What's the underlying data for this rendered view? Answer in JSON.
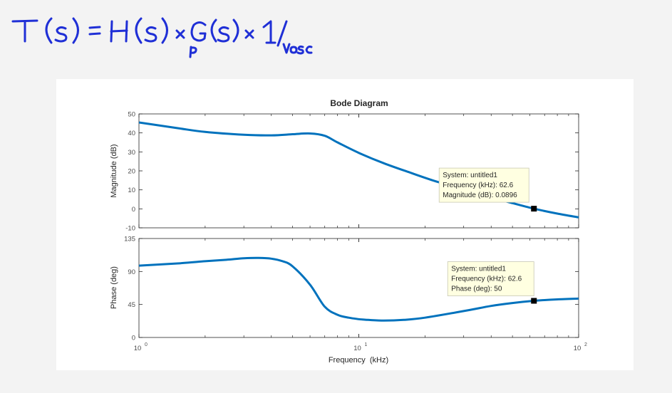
{
  "annotation": {
    "handwritten_equation": "T(s) = H(s) × Gp(s) × 1/Vosc",
    "ink_color": "#1f2fd6"
  },
  "chart_data": {
    "type": "line",
    "title": "Bode Diagram",
    "xlabel": "Frequency  (kHz)",
    "x_scale": "log",
    "xlim": [
      1,
      100
    ],
    "x_ticks": [
      1,
      10,
      100
    ],
    "x_tick_labels": [
      {
        "base": "10",
        "exp": "0"
      },
      {
        "base": "10",
        "exp": "1"
      },
      {
        "base": "10",
        "exp": "2"
      }
    ],
    "grid": false,
    "line_color": "#0072bd",
    "magnitude": {
      "ylabel": "Magnitude (dB)",
      "ylim": [
        -10,
        50
      ],
      "yticks": [
        -10,
        0,
        10,
        20,
        30,
        40,
        50
      ],
      "x": [
        1,
        1.5,
        2,
        3,
        4,
        5,
        6,
        7,
        8,
        10,
        13,
        17,
        22,
        30,
        40,
        50,
        62.6,
        80,
        100
      ],
      "y": [
        45.5,
        42.5,
        40.5,
        39.0,
        38.7,
        39.3,
        39.7,
        38.5,
        35.0,
        29.5,
        24.0,
        19.2,
        14.8,
        10.2,
        6.0,
        3.0,
        0.0896,
        -2.5,
        -4.5
      ]
    },
    "phase": {
      "ylabel": "Phase (deg)",
      "ylim": [
        0,
        135
      ],
      "yticks": [
        0,
        45,
        90,
        135
      ],
      "x": [
        1,
        1.5,
        2,
        2.5,
        3,
        3.5,
        4,
        4.5,
        5,
        6,
        7,
        8,
        9,
        10,
        11,
        13,
        16,
        20,
        30,
        40,
        50,
        62.6,
        80,
        100
      ],
      "y": [
        98,
        101,
        104,
        106,
        108,
        108.5,
        107.5,
        104,
        97,
        72,
        42,
        31,
        27,
        25,
        24,
        23,
        24,
        27,
        36,
        43,
        47,
        50,
        52,
        53
      ]
    },
    "datatips": [
      {
        "panel": "magnitude",
        "x": 62.6,
        "y": 0.0896,
        "lines": [
          "System: untitled1",
          "Frequency (kHz): 62.6",
          "Magnitude (dB): 0.0896"
        ]
      },
      {
        "panel": "phase",
        "x": 62.6,
        "y": 50,
        "lines": [
          "System: untitled1",
          "Frequency (kHz): 62.6",
          "Phase (deg): 50"
        ]
      }
    ]
  }
}
